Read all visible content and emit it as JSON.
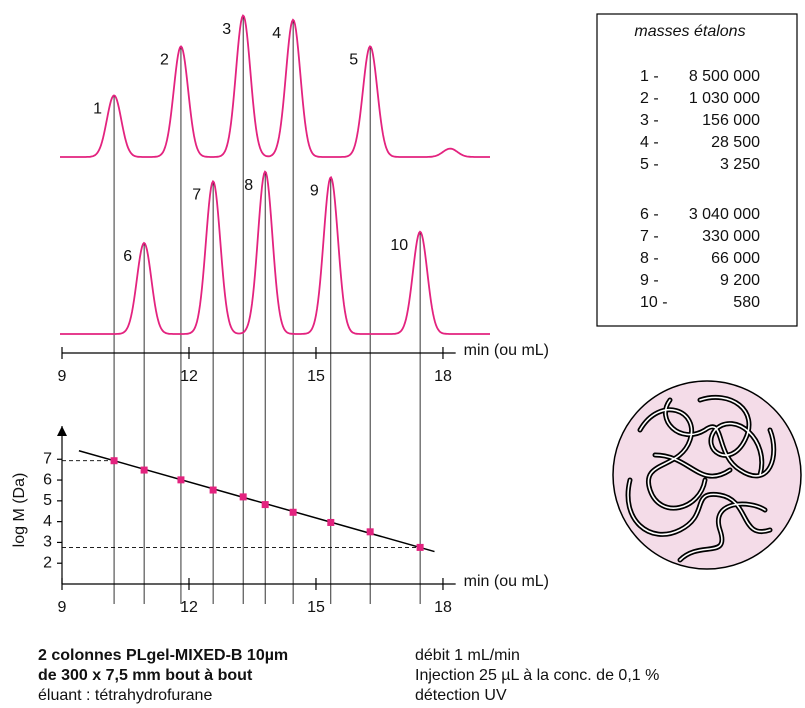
{
  "chart_data": [
    {
      "type": "chromatogram",
      "xlabel": "min (ou mL)",
      "xlim": [
        9,
        18.3
      ],
      "xticks": [
        9,
        12,
        15,
        18
      ],
      "ylim": [
        0,
        1.2
      ],
      "color": "#e3237f",
      "series": [
        {
          "x": [
            10.23,
            11.81,
            13.28,
            14.46,
            16.28,
            18.17
          ],
          "values": [
            0.44,
            0.79,
            1.01,
            0.98,
            0.79,
            0.06
          ],
          "labels": [
            "1",
            "2",
            "3",
            "4",
            "5",
            null
          ]
        },
        {
          "x": [
            10.94,
            12.57,
            13.8,
            15.35,
            17.46
          ],
          "values": [
            0.65,
            1.09,
            1.16,
            1.12,
            0.73
          ],
          "labels": [
            "6",
            "7",
            "8",
            "9",
            "10"
          ]
        }
      ]
    },
    {
      "type": "scatter",
      "xlabel": "min (ou mL)",
      "ylabel": "log M (Da)",
      "xlim": [
        9,
        18.3
      ],
      "xticks": [
        9,
        12,
        15,
        18
      ],
      "ylim": [
        1,
        8.6
      ],
      "yticks": [
        2,
        3,
        4,
        5,
        6,
        7
      ],
      "color": "#e3237f",
      "x": [
        10.23,
        10.94,
        11.81,
        12.57,
        13.28,
        13.8,
        14.46,
        15.35,
        16.28,
        17.46
      ],
      "values": [
        6.93,
        6.48,
        6.01,
        5.52,
        5.19,
        4.82,
        4.45,
        3.96,
        3.51,
        2.76
      ],
      "fit": {
        "x": [
          9.4,
          17.8
        ],
        "values": [
          7.41,
          2.56
        ]
      }
    }
  ],
  "standards": {
    "title": "masses étalons",
    "rows": [
      [
        "1 -",
        "8 500 000"
      ],
      [
        "2 -",
        "1 030 000"
      ],
      [
        "3 -",
        "156 000"
      ],
      [
        "4 -",
        "28 500"
      ],
      [
        "5 -",
        "3 250"
      ],
      [
        "6 -",
        "3 040 000"
      ],
      [
        "7 -",
        "330 000"
      ],
      [
        "8 -",
        "66 000"
      ],
      [
        "9 -",
        "9 200"
      ],
      [
        "10 -",
        "580"
      ]
    ]
  },
  "notes": {
    "left": [
      "2 colonnes PLgel-MIXED-B 10µm",
      "de 300 x 7,5 mm bout à bout",
      "éluant : tétrahydrofurane"
    ],
    "right": [
      "débit 1 mL/min",
      "Injection 25 µL à la conc. de 0,1 %",
      "détection UV"
    ]
  }
}
